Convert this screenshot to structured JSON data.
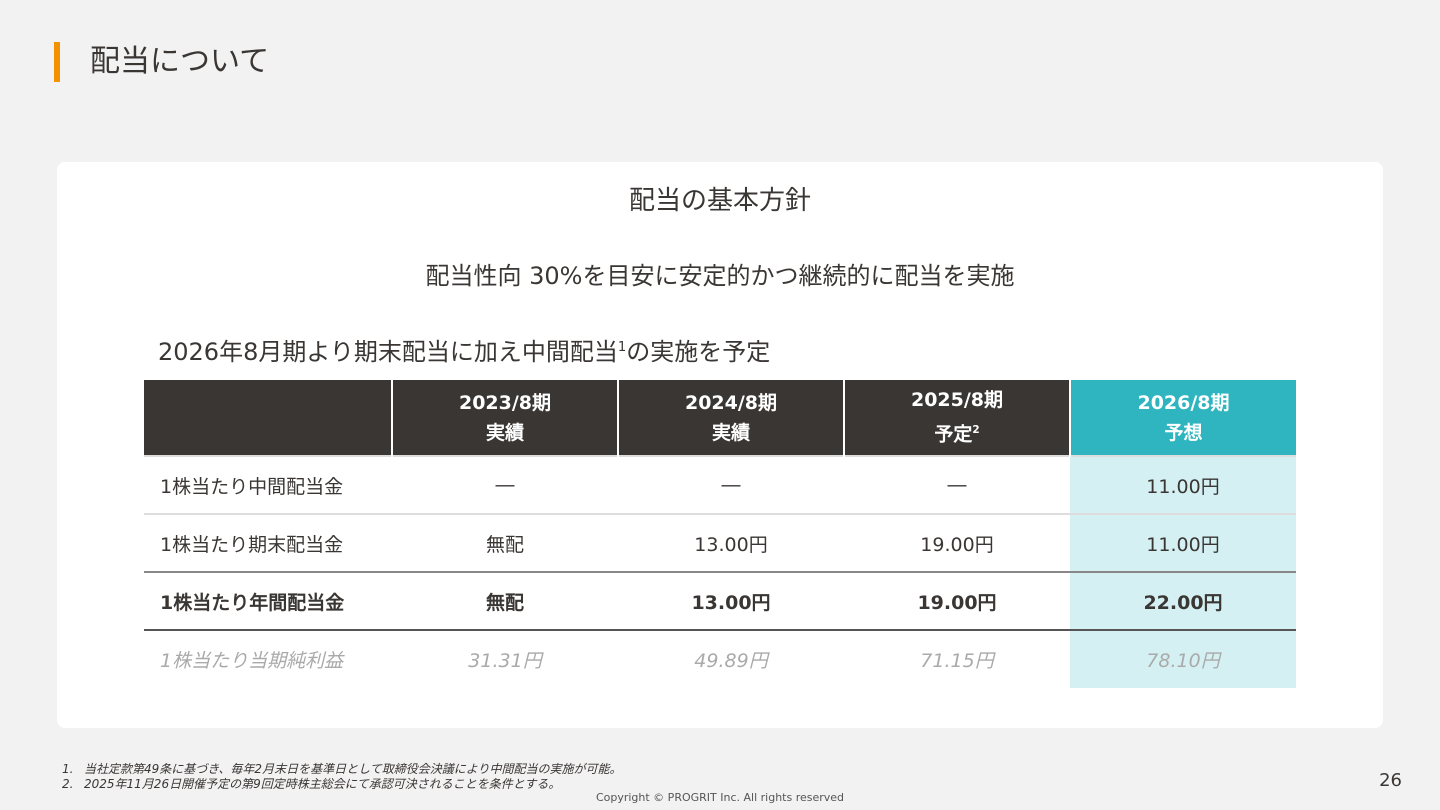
{
  "header": {
    "title": "配当について"
  },
  "card": {
    "heading": "配当の基本方針",
    "policy": "配当性向 30%を目安に安定的かつ継続的に配当を実施",
    "note": {
      "before": "2026年8月期より期末配当に加え中間配当",
      "sup": "1",
      "after": "の実施を予定"
    },
    "table": {
      "columns": [
        {
          "period": "2023/8期",
          "status": "実績"
        },
        {
          "period": "2024/8期",
          "status": "実績"
        },
        {
          "period": "2025/8期",
          "status": "予定",
          "sup": "2"
        },
        {
          "period": "2026/8期",
          "status": "予想"
        }
      ],
      "rows": [
        {
          "label": "1株当たり中間配当金",
          "cells": [
            "―",
            "―",
            "―",
            "11.00円"
          ]
        },
        {
          "label": "1株当たり期末配当金",
          "cells": [
            "無配",
            "13.00円",
            "19.00円",
            "11.00円"
          ]
        },
        {
          "label": "1株当たり年間配当金",
          "cells": [
            "無配",
            "13.00円",
            "19.00円",
            "22.00円"
          ]
        },
        {
          "label": "1株当たり当期純利益",
          "cells": [
            "31.31円",
            "49.89円",
            "71.15円",
            "78.10円"
          ]
        }
      ]
    }
  },
  "footnotes": [
    {
      "num": "1.",
      "text": "当社定款第49条に基づき、毎年2月末日を基準日として取締役会決議により中間配当の実施が可能。"
    },
    {
      "num": "2.",
      "text": "2025年11月26日開催予定の第9回定時株主総会にて承認可決されることを条件とする。"
    }
  ],
  "footer": {
    "copyright": "Copyright © PROGRIT Inc. All rights reserved",
    "page": "26"
  }
}
